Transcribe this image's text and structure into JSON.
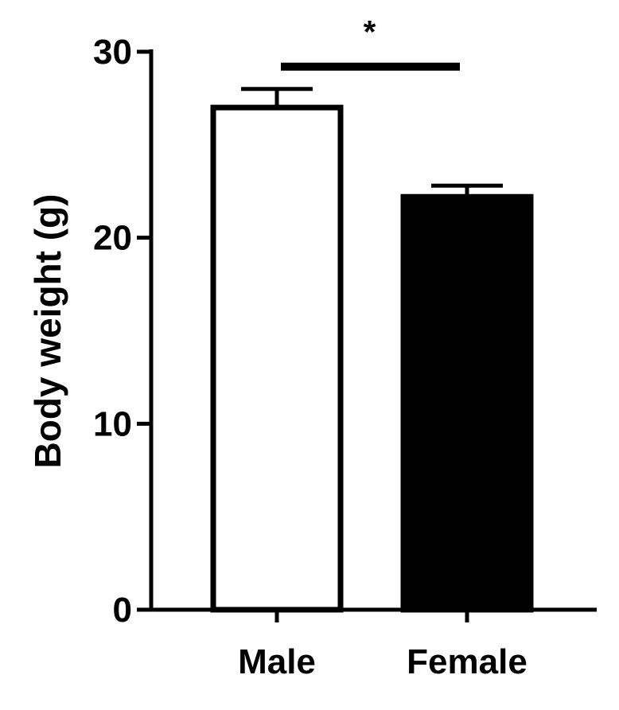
{
  "chart_data": {
    "type": "bar",
    "categories": [
      "Male",
      "Female"
    ],
    "values": [
      27.0,
      22.2
    ],
    "errors": [
      1.0,
      0.6
    ],
    "bar_fills": [
      "#ffffff",
      "#000000"
    ],
    "ylabel": "Body weight (g)",
    "xlabel": "",
    "ylim": [
      0,
      30
    ],
    "yticks": [
      "0",
      "10",
      "20",
      "30"
    ],
    "grid": false,
    "significance": {
      "between": [
        0,
        1
      ],
      "label": "*",
      "y": 29.2
    }
  }
}
